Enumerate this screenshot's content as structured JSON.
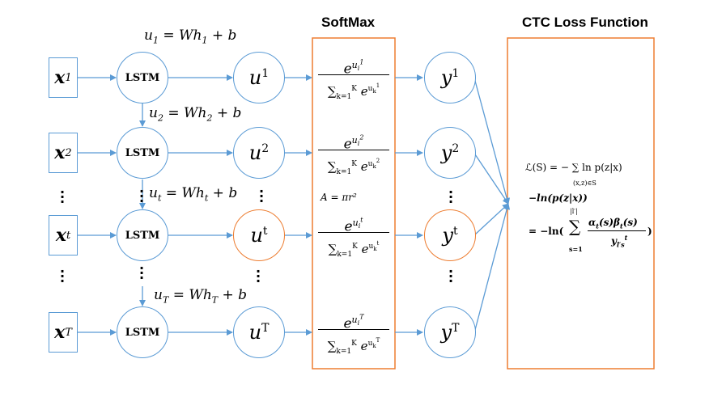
{
  "headers": {
    "softmax": "SoftMax",
    "ctc": "CTC Loss Function"
  },
  "inputs": [
    {
      "base": "x",
      "sub": "1"
    },
    {
      "base": "x",
      "sub": "2"
    },
    {
      "base": "x",
      "sub": "t"
    },
    {
      "base": "x",
      "sub": "T"
    }
  ],
  "lstm_label": "LSTM",
  "uvars": [
    {
      "base": "u",
      "sup": "1"
    },
    {
      "base": "u",
      "sup": "2"
    },
    {
      "base": "u",
      "sup": "t"
    },
    {
      "base": "u",
      "sup": "T"
    }
  ],
  "yvars": [
    {
      "base": "y",
      "sup": "1"
    },
    {
      "base": "y",
      "sup": "2"
    },
    {
      "base": "y",
      "sup": "t"
    },
    {
      "base": "y",
      "sup": "T"
    }
  ],
  "equations": [
    {
      "lhs": "u",
      "sub": "1",
      "rhs": " = Wh",
      "rsub": "1",
      "tail": " + b"
    },
    {
      "lhs": "u",
      "sub": "2",
      "rhs": " = Wh",
      "rsub": "2",
      "tail": " + b"
    },
    {
      "lhs": "u",
      "sub": "t",
      "rhs": " = Wh",
      "rsub": "t",
      "tail": " + b"
    },
    {
      "lhs": "u",
      "sub": "T",
      "rhs": " = Wh",
      "rsub": "T",
      "tail": " + b"
    }
  ],
  "softmax_sup": [
    "1",
    "2",
    "t",
    "T"
  ],
  "softmax_num_base": "e",
  "softmax_den_text": "∑",
  "area_formula": "A = πr²",
  "ctc_lines": [
    "ℒ(S) = − ∑ ln p(z|x)",
    "(x,z)∈S",
    "−ln(p(z|x))",
    "= −ln(",
    "|l′|",
    "s=1",
    "α",
    "(s)β",
    "(s)",
    "y",
    ")"
  ],
  "colors": {
    "blue": "#5b9bd5",
    "orange": "#ed7d31",
    "arrow": "#5b9bd5"
  }
}
